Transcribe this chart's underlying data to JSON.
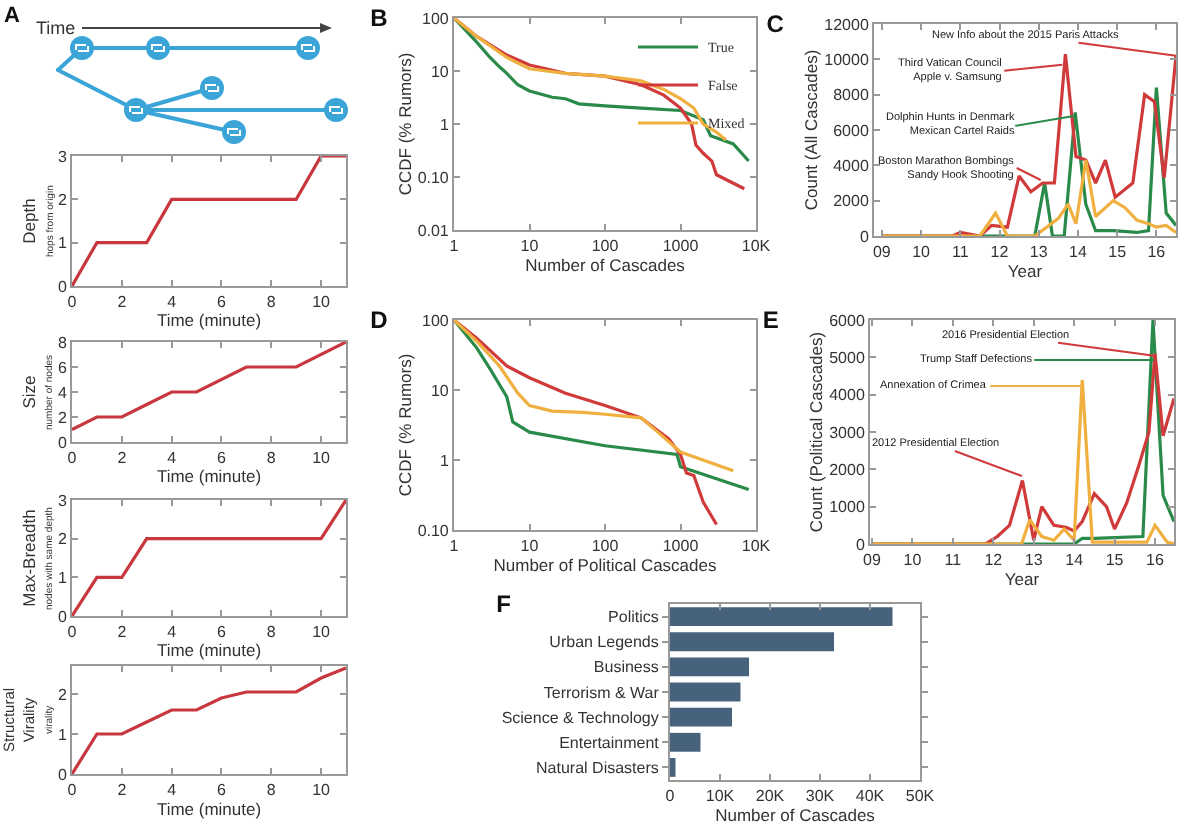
{
  "chart_data": [
    {
      "type": "other",
      "title": "A",
      "annotations": [
        "Time"
      ]
    },
    {
      "type": "line",
      "ylabel": "Depth",
      "xlabel": "Time (minute)",
      "annotations": [
        "hops from origin"
      ],
      "x": [
        0,
        1,
        3,
        4,
        9,
        10,
        11
      ],
      "values": [
        0,
        1,
        1,
        2,
        2,
        3,
        3
      ],
      "color": "#c8373e",
      "xlim": [
        0,
        11
      ],
      "xticks": [
        0,
        2,
        4,
        6,
        8,
        10
      ],
      "ylim": [
        0,
        3
      ],
      "yticks": [
        0,
        1,
        2,
        3
      ]
    },
    {
      "type": "line",
      "ylabel": "Size",
      "xlabel": "Time (minute)",
      "annotations": [
        "number of nodes"
      ],
      "x": [
        0,
        1,
        2,
        3,
        4,
        5,
        7,
        9,
        11
      ],
      "values": [
        1,
        2,
        2,
        3,
        4,
        4,
        6,
        6,
        8
      ],
      "color": "#c8373e",
      "xlim": [
        0,
        11
      ],
      "xticks": [
        0,
        2,
        4,
        6,
        8,
        10
      ],
      "ylim": [
        0,
        8
      ],
      "yticks": [
        0,
        2,
        4,
        6,
        8
      ]
    },
    {
      "type": "line",
      "ylabel": "Max-Breadth",
      "xlabel": "Time (minute)",
      "annotations": [
        "nodes with same depth"
      ],
      "x": [
        0,
        1,
        2,
        3,
        10,
        11
      ],
      "values": [
        0,
        1,
        1,
        2,
        2,
        3
      ],
      "color": "#c8373e",
      "xlim": [
        0,
        11
      ],
      "xticks": [
        0,
        2,
        4,
        6,
        8,
        10
      ],
      "ylim": [
        0,
        3
      ],
      "yticks": [
        0,
        1,
        2,
        3
      ]
    },
    {
      "type": "line",
      "ylabel": "Structural\nVirality",
      "xlabel": "Time (minute)",
      "annotations": [
        "virality"
      ],
      "x": [
        0,
        1,
        2,
        3,
        4,
        5,
        6,
        7,
        9,
        10,
        11
      ],
      "values": [
        0,
        1,
        1,
        1.3,
        1.6,
        1.6,
        1.9,
        2.05,
        2.05,
        2.4,
        2.65
      ],
      "color": "#c8373e",
      "xlim": [
        0,
        11
      ],
      "xticks": [
        0,
        2,
        4,
        6,
        8,
        10
      ],
      "ylim": [
        0,
        2.7
      ],
      "yticks": [
        0,
        1,
        2
      ]
    },
    {
      "type": "line",
      "title": "B",
      "xlabel": "Number of Cascades",
      "ylabel": "CCDF (% Rumors)",
      "log": "xy",
      "legend": "top right",
      "xlim": [
        1,
        10000
      ],
      "ylim": [
        0.01,
        100
      ],
      "xticks": [
        1,
        10,
        100,
        1000,
        {
          "value": 10000,
          "label": "10K"
        }
      ],
      "yticks": [
        0.01,
        {
          "value": 0.1,
          "label": "0.10"
        },
        1,
        10,
        100
      ],
      "series": [
        {
          "name": "True",
          "color": "#2a8a4a",
          "x": [
            1,
            2,
            3,
            4,
            5,
            7,
            10,
            20,
            30,
            45,
            100,
            300,
            1000,
            2000,
            2500,
            5000,
            8000
          ],
          "values": [
            100,
            35,
            18,
            12,
            9,
            5.5,
            4.2,
            3.2,
            3,
            2.4,
            2.2,
            2,
            1.8,
            1.2,
            0.6,
            0.42,
            0.2
          ]
        },
        {
          "name": "False",
          "color": "#d03a3a",
          "x": [
            1,
            2,
            5,
            10,
            30,
            100,
            300,
            600,
            1000,
            1400,
            1600,
            2000,
            2600,
            3000,
            7000
          ],
          "values": [
            100,
            45,
            20,
            13,
            9,
            8,
            5.5,
            3.5,
            2,
            1,
            0.4,
            0.28,
            0.2,
            0.11,
            0.06
          ]
        },
        {
          "name": "Mixed",
          "color": "#f0b040",
          "x": [
            1,
            2,
            5,
            10,
            30,
            100,
            300,
            600,
            1000,
            1500,
            2000,
            3000,
            4000
          ],
          "values": [
            100,
            45,
            18,
            11,
            9,
            8,
            6.5,
            4.5,
            3,
            2,
            1,
            0.7,
            0.5
          ]
        }
      ]
    },
    {
      "type": "line",
      "title": "C",
      "xlabel": "Year",
      "ylabel": "Count (All Cascades)",
      "xlim": [
        2008.8,
        2016.5
      ],
      "ylim": [
        0,
        12000
      ],
      "xticks": [
        {
          "value": 2009,
          "label": "09"
        },
        {
          "value": 2010,
          "label": "10"
        },
        {
          "value": 2011,
          "label": "11"
        },
        {
          "value": 2012,
          "label": "12"
        },
        {
          "value": 2013,
          "label": "13"
        },
        {
          "value": 2014,
          "label": "14"
        },
        {
          "value": 2015,
          "label": "15"
        },
        {
          "value": 2016,
          "label": "16"
        }
      ],
      "yticks": [
        0,
        2000,
        4000,
        6000,
        8000,
        10000,
        12000
      ],
      "series": [
        {
          "color": "#2a8a4a",
          "x": [
            2009,
            2012.9,
            2013.15,
            2013.35,
            2013.65,
            2013.93,
            2014.2,
            2014.45,
            2014.9,
            2015.5,
            2015.8,
            2016,
            2016.25,
            2016.5
          ],
          "values": [
            0,
            0,
            3000,
            0,
            0,
            7000,
            1800,
            300,
            300,
            200,
            300,
            8400,
            1300,
            600
          ]
        },
        {
          "color": "#d03a3a",
          "x": [
            2009,
            2010.8,
            2011,
            2011.5,
            2011.8,
            2012.2,
            2012.5,
            2012.8,
            2013.1,
            2013.4,
            2013.68,
            2013.95,
            2014.2,
            2014.45,
            2014.7,
            2014.95,
            2015.4,
            2015.7,
            2015.95,
            2016.2,
            2016.5
          ],
          "values": [
            0,
            0,
            200,
            0,
            600,
            500,
            3400,
            2500,
            3000,
            3000,
            10300,
            4500,
            4300,
            3000,
            4300,
            2200,
            3000,
            8000,
            7600,
            3300,
            10200
          ]
        },
        {
          "color": "#f0b040",
          "x": [
            2009,
            2011.5,
            2011.9,
            2012.2,
            2012.9,
            2013.2,
            2013.5,
            2013.75,
            2013.95,
            2014.2,
            2014.45,
            2014.9,
            2015.2,
            2015.5,
            2015.8,
            2016,
            2016.25,
            2016.5
          ],
          "values": [
            0,
            0,
            1300,
            0,
            0,
            500,
            1000,
            1800,
            700,
            4300,
            1100,
            2000,
            1600,
            900,
            700,
            500,
            600,
            200
          ]
        }
      ],
      "annotations": [
        {
          "text": "New Info about the 2015 Paris Attacks",
          "x": 2016.5,
          "y": 10200
        },
        {
          "text": "Third Vatican Council\nApple v. Samsung",
          "x": 2013.6,
          "y": 9700
        },
        {
          "text": "Dolphin Hunts in Denmark\nMexican Cartel Raids",
          "x": 2013.93,
          "y": 6800
        },
        {
          "text": "Boston Marathon Bombings\nSandy Hook Shooting",
          "x": 2013.05,
          "y": 3170
        }
      ]
    },
    {
      "type": "line",
      "title": "D",
      "xlabel": "Number of Political Cascades",
      "ylabel": "CCDF (% Rumors)",
      "log": "xy",
      "xlim": [
        1,
        10000
      ],
      "ylim": [
        0.1,
        100
      ],
      "xticks": [
        1,
        10,
        100,
        1000,
        {
          "value": 10000,
          "label": "10K"
        }
      ],
      "yticks": [
        {
          "value": 0.1,
          "label": "0.10"
        },
        1,
        10,
        100
      ],
      "series": [
        {
          "color": "#2a8a4a",
          "x": [
            1,
            2,
            3,
            5,
            6,
            10,
            100,
            900,
            1000,
            8000
          ],
          "values": [
            100,
            40,
            20,
            8,
            3.5,
            2.5,
            1.6,
            1.2,
            0.8,
            0.38
          ]
        },
        {
          "color": "#d03a3a",
          "x": [
            1,
            2,
            5,
            10,
            30,
            100,
            300,
            700,
            1000,
            1200,
            1500,
            2000,
            3000
          ],
          "values": [
            100,
            55,
            22,
            15,
            9,
            6,
            4,
            2,
            1.2,
            0.65,
            0.6,
            0.25,
            0.12
          ]
        },
        {
          "color": "#f0b040",
          "x": [
            1,
            2,
            4,
            7,
            10,
            20,
            50,
            100,
            300,
            500,
            1000,
            5000
          ],
          "values": [
            100,
            50,
            22,
            9,
            6,
            5,
            4.8,
            4.5,
            4,
            2.5,
            1.3,
            0.7
          ]
        }
      ]
    },
    {
      "type": "line",
      "title": "E",
      "xlabel": "Year",
      "ylabel": "Count (Political Cascades)",
      "xlim": [
        2008.95,
        2016.47
      ],
      "ylim": [
        0,
        6000
      ],
      "xticks": [
        {
          "value": 2009,
          "label": "09"
        },
        {
          "value": 2010,
          "label": "10"
        },
        {
          "value": 2011,
          "label": "11"
        },
        {
          "value": 2012,
          "label": "12"
        },
        {
          "value": 2013,
          "label": "13"
        },
        {
          "value": 2014,
          "label": "14"
        },
        {
          "value": 2015,
          "label": "15"
        },
        {
          "value": 2016,
          "label": "16"
        }
      ],
      "yticks": [
        0,
        1000,
        2000,
        3000,
        4000,
        5000,
        6000
      ],
      "series": [
        {
          "color": "#2a8a4a",
          "x": [
            2009,
            2014,
            2014.2,
            2014.5,
            2015.7,
            2015.95,
            2016.2,
            2016.47
          ],
          "values": [
            0,
            0,
            150,
            150,
            200,
            6000,
            1300,
            600
          ]
        },
        {
          "color": "#d03a3a",
          "x": [
            2009,
            2011.8,
            2012.1,
            2012.4,
            2012.72,
            2013,
            2013.2,
            2013.5,
            2013.8,
            2014,
            2014.2,
            2014.5,
            2014.8,
            2015,
            2015.3,
            2015.6,
            2015.85,
            2016,
            2016.2,
            2016.47
          ],
          "values": [
            0,
            0,
            200,
            500,
            1700,
            100,
            1000,
            500,
            450,
            350,
            600,
            1350,
            1000,
            400,
            1100,
            2100,
            3000,
            5100,
            2900,
            3900
          ]
        },
        {
          "color": "#f0b040",
          "x": [
            2009,
            2012.7,
            2012.9,
            2013.2,
            2013.5,
            2013.75,
            2014,
            2014.2,
            2014.45,
            2015.8,
            2016,
            2016.3,
            2016.47
          ],
          "values": [
            0,
            0,
            650,
            200,
            100,
            400,
            100,
            4400,
            50,
            50,
            500,
            50,
            0
          ]
        }
      ],
      "annotations": [
        {
          "text": "2016 Presidential Election",
          "x": 2015.98,
          "y": 5040
        },
        {
          "text": "Trump Staff Defections",
          "x": 2015.98,
          "y": 4930
        },
        {
          "text": "Annexation of Crimea",
          "x": 2014.2,
          "y": 4230
        },
        {
          "text": "2012 Presidential Election",
          "x": 2012.71,
          "y": 1820
        }
      ]
    },
    {
      "type": "bar",
      "title": "F",
      "orientation": "horizontal",
      "xlabel": "Number of Cascades",
      "categories": [
        "Politics",
        "Urban Legends",
        "Business",
        "Terrorism & War",
        "Science & Technology",
        "Entertainment",
        "Natural Disasters"
      ],
      "values": [
        44500,
        32800,
        15800,
        14100,
        12400,
        6100,
        1100
      ],
      "color": "#46627c",
      "xlim": [
        0,
        50000
      ],
      "xticks": [
        0,
        {
          "value": 10000,
          "label": "10K"
        },
        {
          "value": 20000,
          "label": "20K"
        },
        {
          "value": 30000,
          "label": "30K"
        },
        {
          "value": 40000,
          "label": "40K"
        },
        {
          "value": 50000,
          "label": "50K"
        }
      ]
    }
  ]
}
